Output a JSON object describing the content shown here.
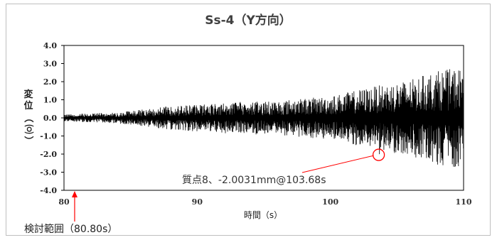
{
  "chart_data": {
    "type": "line",
    "title": "Ss-4（Y方向）",
    "xlabel": "時間（s）",
    "ylabel_chars": [
      "変",
      "位",
      "（",
      "㈇",
      "）"
    ],
    "xlim": [
      80,
      110
    ],
    "ylim": [
      -4.0,
      4.0
    ],
    "x_ticks": [
      "80",
      "90",
      "100",
      "110"
    ],
    "y_ticks": [
      "4.0",
      "3.0",
      "2.0",
      "1.0",
      "0.0",
      "-1.0",
      "-2.0",
      "-3.0",
      "-4.0"
    ],
    "grid": false,
    "series_color": "#000000",
    "envelope": [
      {
        "t": 80,
        "amp": 0.2
      },
      {
        "t": 84,
        "amp": 0.3
      },
      {
        "t": 88,
        "amp": 0.65
      },
      {
        "t": 92,
        "amp": 0.85
      },
      {
        "t": 96,
        "amp": 0.95
      },
      {
        "t": 100,
        "amp": 1.2
      },
      {
        "t": 103,
        "amp": 1.7
      },
      {
        "t": 106,
        "amp": 2.1
      },
      {
        "t": 108,
        "amp": 2.6
      },
      {
        "t": 110,
        "amp": 2.8
      }
    ],
    "peak": {
      "x": 103.68,
      "y": -2.0031
    },
    "annotation": "質点8、-2.0031mm@103.68s",
    "range_marker": {
      "x": 80.8,
      "label": "検討範囲（80.80s）"
    },
    "marker_color": "#ff0000"
  }
}
